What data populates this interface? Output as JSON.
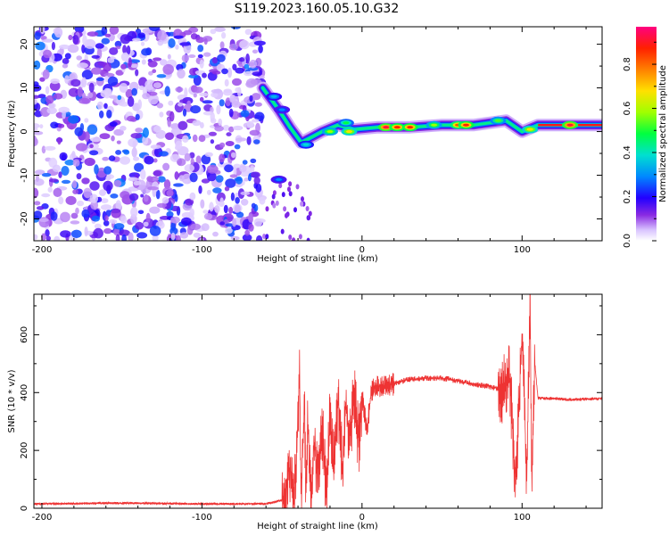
{
  "title": "S119.2023.160.05.10.G32",
  "chart_data": [
    {
      "type": "heatmap",
      "xlabel": "Height of straight line (km)",
      "ylabel": "Frequency (Hz)",
      "xlim": [
        -205,
        150
      ],
      "ylim": [
        -25,
        24
      ],
      "xticks": [
        -200,
        -100,
        0,
        100
      ],
      "yticks": [
        -20,
        -10,
        0,
        10,
        20
      ],
      "colorbar": {
        "label": "Normalized spectral amplitude",
        "range": [
          0,
          0.97
        ],
        "ticks": [
          0.0,
          0.2,
          0.4,
          0.6,
          0.8
        ]
      },
      "noise_region": {
        "x_from": -205,
        "x_to": -62,
        "max_amplitude": 0.25
      },
      "signal_line": [
        {
          "x": -62,
          "f": 10
        },
        {
          "x": -58,
          "f": 8
        },
        {
          "x": -52,
          "f": 5
        },
        {
          "x": -45,
          "f": 1
        },
        {
          "x": -38,
          "f": -2.5
        },
        {
          "x": -30,
          "f": -1
        },
        {
          "x": -25,
          "f": 0
        },
        {
          "x": -15,
          "f": 1.5
        },
        {
          "x": -5,
          "f": 0.5
        },
        {
          "x": 10,
          "f": 1
        },
        {
          "x": 30,
          "f": 1
        },
        {
          "x": 50,
          "f": 1.5
        },
        {
          "x": 70,
          "f": 1.5
        },
        {
          "x": 90,
          "f": 2.5
        },
        {
          "x": 100,
          "f": 0
        },
        {
          "x": 110,
          "f": 1.5
        },
        {
          "x": 150,
          "f": 1.5
        }
      ],
      "hotspots": [
        {
          "x": -55,
          "f": 8,
          "amp": 0.35
        },
        {
          "x": -50,
          "f": 5,
          "amp": 0.3
        },
        {
          "x": -52,
          "f": -11,
          "amp": 0.3
        },
        {
          "x": -35,
          "f": -3,
          "amp": 0.4
        },
        {
          "x": -20,
          "f": 0,
          "amp": 0.6
        },
        {
          "x": -10,
          "f": 2,
          "amp": 0.5
        },
        {
          "x": -8,
          "f": 0,
          "amp": 0.7
        },
        {
          "x": 15,
          "f": 1,
          "amp": 0.95
        },
        {
          "x": 22,
          "f": 1,
          "amp": 0.9
        },
        {
          "x": 30,
          "f": 1,
          "amp": 0.9
        },
        {
          "x": 45,
          "f": 1.5,
          "amp": 0.6
        },
        {
          "x": 60,
          "f": 1.5,
          "amp": 0.85
        },
        {
          "x": 65,
          "f": 1.5,
          "amp": 0.9
        },
        {
          "x": 85,
          "f": 2.5,
          "amp": 0.55
        },
        {
          "x": 105,
          "f": 0.5,
          "amp": 0.7
        },
        {
          "x": 130,
          "f": 1.5,
          "amp": 0.95
        }
      ]
    },
    {
      "type": "line",
      "xlabel": "Height of straight line (km)",
      "ylabel": "SNR (10 * v/v)",
      "xlim": [
        -205,
        150
      ],
      "ylim": [
        0,
        740
      ],
      "xticks": [
        -200,
        -100,
        0,
        100
      ],
      "yticks": [
        0,
        200,
        400,
        600
      ],
      "color": "#ee3333",
      "x": [
        -205,
        -150,
        -100,
        -60,
        -48,
        -46,
        -44,
        -42,
        -40,
        -39,
        -38,
        -36,
        -35,
        -34,
        -32,
        -30,
        -28,
        -25,
        -22,
        -20,
        -18,
        -15,
        -12,
        -10,
        -8,
        -5,
        -2,
        0,
        3,
        6,
        10,
        15,
        20,
        25,
        30,
        40,
        50,
        60,
        70,
        80,
        88,
        92,
        96,
        100,
        103,
        105,
        106,
        108,
        110,
        120,
        130,
        150
      ],
      "y": [
        15,
        18,
        15,
        15,
        30,
        140,
        120,
        60,
        300,
        490,
        20,
        380,
        50,
        310,
        20,
        250,
        100,
        290,
        40,
        330,
        150,
        380,
        120,
        400,
        200,
        410,
        220,
        390,
        270,
        410,
        420,
        420,
        430,
        440,
        445,
        450,
        450,
        440,
        430,
        420,
        410,
        480,
        80,
        600,
        100,
        750,
        90,
        500,
        380,
        380,
        375,
        380
      ]
    }
  ]
}
